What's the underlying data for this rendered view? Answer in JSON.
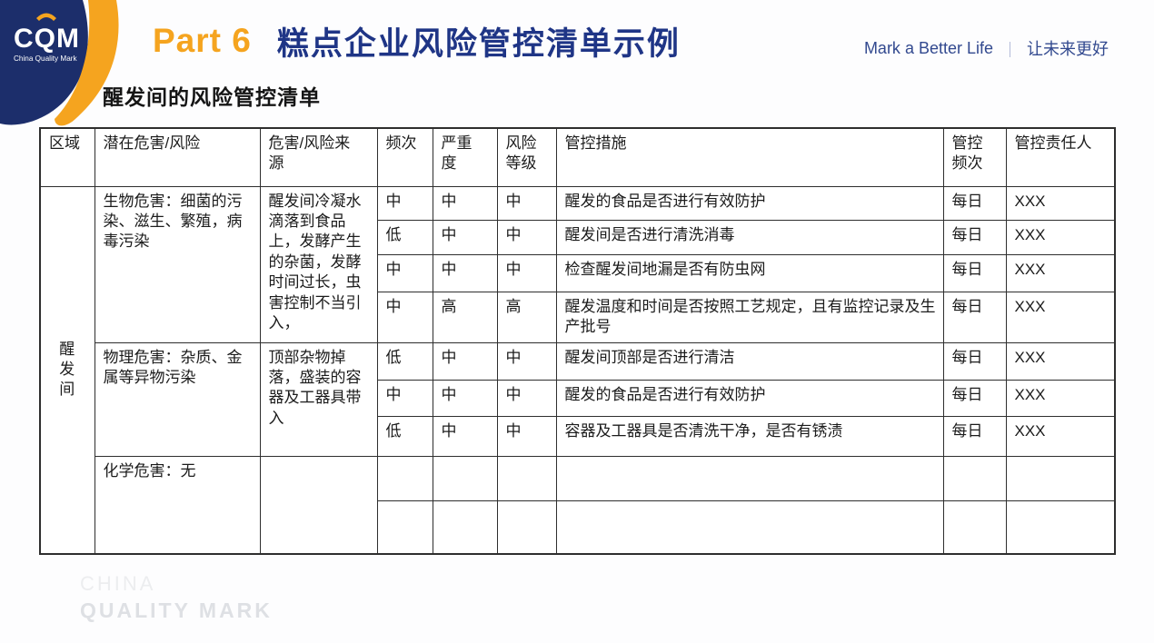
{
  "logo": {
    "acronym": "CQM",
    "tagline": "China Quality Mark"
  },
  "header": {
    "part_label": "Part 6",
    "title": "糕点企业风险管控清单示例",
    "slogan_en": "Mark a Better Life",
    "slogan_separator": "｜",
    "slogan_zh": "让未来更好"
  },
  "subtitle": "醒发间的风险管控清单",
  "watermark": {
    "line1": "CHINA",
    "line2": "QUALITY MARK"
  },
  "colors": {
    "accent_orange": "#F5A41F",
    "brand_navy": "#1F3586",
    "logo_navy": "#1C2E6B",
    "table_border": "#2E2E2E"
  },
  "table": {
    "columns": [
      "区域",
      "潜在危害/风险",
      "危害/风险来\n源",
      "频次",
      "严重\n度",
      "风险\n等级",
      "管控措施",
      "管控\n频次",
      "管控责任人"
    ],
    "area": "醒发间",
    "groups": [
      {
        "hazard": "生物危害：细菌的污染、滋生、繁殖，病毒污染",
        "source": "醒发间冷凝水滴落到食品上，发酵产生的杂菌，发酵时间过长，虫害控制不当引入，",
        "rows": [
          {
            "freq": "中",
            "severity": "中",
            "level": "中",
            "measure": "醒发的食品是否进行有效防护",
            "ctrl_freq": "每日",
            "owner": "XXX"
          },
          {
            "freq": "低",
            "severity": "中",
            "level": "中",
            "measure": "醒发间是否进行清洗消毒",
            "ctrl_freq": "每日",
            "owner": "XXX"
          },
          {
            "freq": "中",
            "severity": "中",
            "level": "中",
            "measure": "检查醒发间地漏是否有防虫网",
            "ctrl_freq": "每日",
            "owner": "XXX"
          },
          {
            "freq": "中",
            "severity": "高",
            "level": "高",
            "measure": "醒发温度和时间是否按照工艺规定，且有监控记录及生产批号",
            "ctrl_freq": "每日",
            "owner": "XXX"
          }
        ]
      },
      {
        "hazard": "物理危害：杂质、金属等异物污染",
        "source": "顶部杂物掉落，盛装的容器及工器具带入",
        "rows": [
          {
            "freq": "低",
            "severity": "中",
            "level": "中",
            "measure": "醒发间顶部是否进行清洁",
            "ctrl_freq": "每日",
            "owner": "XXX"
          },
          {
            "freq": "中",
            "severity": "中",
            "level": "中",
            "measure": "醒发的食品是否进行有效防护",
            "ctrl_freq": "每日",
            "owner": "XXX"
          },
          {
            "freq": "低",
            "severity": "中",
            "level": "中",
            "measure": "容器及工器具是否清洗干净，是否有锈渍",
            "ctrl_freq": "每日",
            "owner": "XXX"
          }
        ]
      },
      {
        "hazard": "化学危害：无",
        "source": "",
        "rows": [
          {
            "freq": "",
            "severity": "",
            "level": "",
            "measure": "",
            "ctrl_freq": "",
            "owner": ""
          },
          {
            "freq": "",
            "severity": "",
            "level": "",
            "measure": "",
            "ctrl_freq": "",
            "owner": ""
          }
        ]
      }
    ]
  }
}
